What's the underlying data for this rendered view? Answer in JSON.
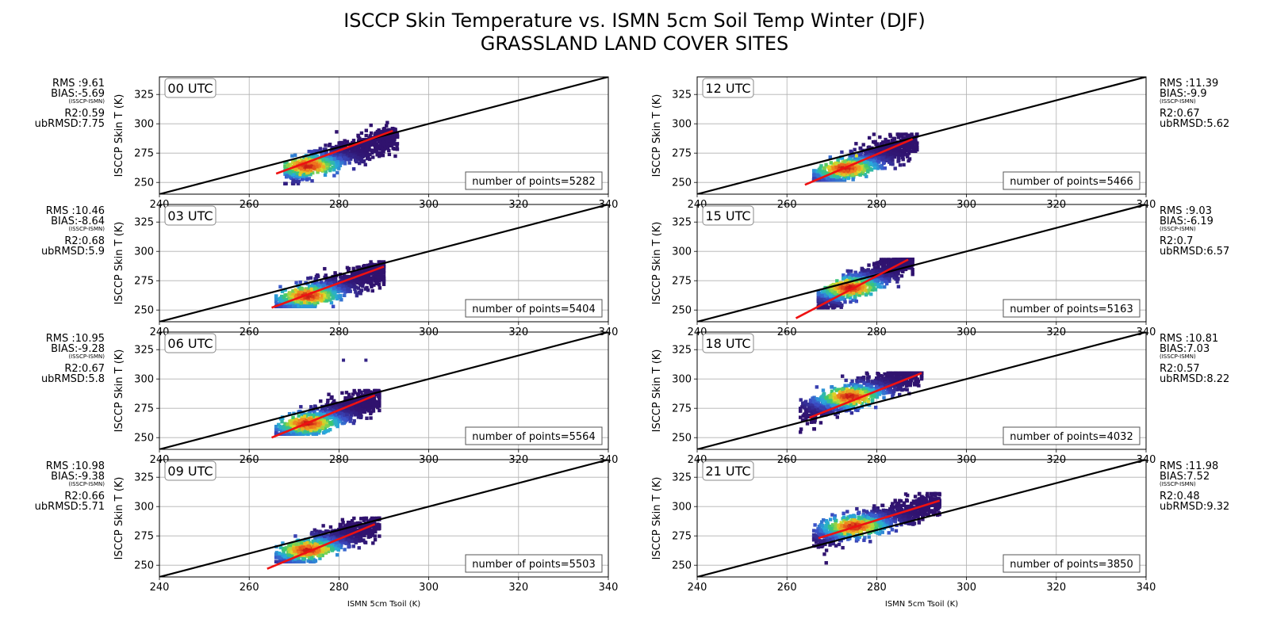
{
  "figure": {
    "title_line1": "ISCCP Skin Temperature vs. ISMN 5cm Soil Temp Winter (DJF)",
    "title_line2": "GRASSLAND LAND COVER SITES"
  },
  "chart_data": [
    {
      "type": "scatter",
      "panel": "00 UTC",
      "column": "left",
      "xlabel": "",
      "ylabel": "ISCCP Skin T (K)",
      "xlim": [
        240,
        340
      ],
      "ylim": [
        240,
        340
      ],
      "xticks": [
        240,
        260,
        280,
        300,
        320,
        340
      ],
      "yticks": [
        250,
        275,
        300,
        325
      ],
      "grid": true,
      "one_to_one_line": [
        [
          240,
          240
        ],
        [
          340,
          340
        ]
      ],
      "fit_line": [
        [
          266,
          257.5
        ],
        [
          292,
          294
        ]
      ],
      "density_center": [
        273,
        264
      ],
      "cloud_extent": {
        "x": [
          268,
          293
        ],
        "y": [
          249,
          301
        ]
      },
      "stats": {
        "rms": "RMS :9.61",
        "bias": "BIAS:-5.69",
        "bias_note": "(ISSCP-ISMN)",
        "r2": "R2:0.59",
        "ubrmsd": "ubRMSD:7.75"
      },
      "points_label": "number of points=5282"
    },
    {
      "type": "scatter",
      "panel": "03 UTC",
      "column": "left",
      "xlabel": "",
      "ylabel": "ISCCP Skin T (K)",
      "xlim": [
        240,
        340
      ],
      "ylim": [
        240,
        340
      ],
      "xticks": [
        240,
        260,
        280,
        300,
        320,
        340
      ],
      "yticks": [
        250,
        275,
        300,
        325
      ],
      "grid": true,
      "one_to_one_line": [
        [
          240,
          240
        ],
        [
          340,
          340
        ]
      ],
      "fit_line": [
        [
          265,
          252
        ],
        [
          290,
          287
        ]
      ],
      "density_center": [
        273,
        262
      ],
      "cloud_extent": {
        "x": [
          266,
          290
        ],
        "y": [
          253,
          291
        ]
      },
      "stats": {
        "rms": "RMS :10.46",
        "bias": "BIAS:-8.64",
        "bias_note": "(ISSCP-ISMN)",
        "r2": "R2:0.68",
        "ubrmsd": "ubRMSD:5.9"
      },
      "points_label": "number of points=5404"
    },
    {
      "type": "scatter",
      "panel": "06 UTC",
      "column": "left",
      "xlabel": "",
      "ylabel": "ISCCP Skin T (K)",
      "xlim": [
        240,
        340
      ],
      "ylim": [
        240,
        340
      ],
      "xticks": [
        240,
        260,
        280,
        300,
        320,
        340
      ],
      "yticks": [
        250,
        275,
        300,
        325
      ],
      "grid": true,
      "one_to_one_line": [
        [
          240,
          240
        ],
        [
          340,
          340
        ]
      ],
      "fit_line": [
        [
          265,
          250
        ],
        [
          288,
          286
        ]
      ],
      "density_center": [
        273,
        262
      ],
      "cloud_extent": {
        "x": [
          266,
          289
        ],
        "y": [
          253,
          290
        ]
      },
      "outliers": [
        [
          281,
          316
        ],
        [
          286,
          316
        ]
      ],
      "stats": {
        "rms": "RMS :10.95",
        "bias": "BIAS:-9.28",
        "bias_note": "(ISSCP-ISMN)",
        "r2": "R2:0.67",
        "ubrmsd": "ubRMSD:5.8"
      },
      "points_label": "number of points=5564"
    },
    {
      "type": "scatter",
      "panel": "09 UTC",
      "column": "left",
      "xlabel": "ISMN 5cm Tsoil (K)",
      "ylabel": "ISCCP Skin T (K)",
      "xlim": [
        240,
        340
      ],
      "ylim": [
        240,
        340
      ],
      "xticks": [
        240,
        260,
        280,
        300,
        320,
        340
      ],
      "yticks": [
        250,
        275,
        300,
        325
      ],
      "grid": true,
      "one_to_one_line": [
        [
          240,
          240
        ],
        [
          340,
          340
        ]
      ],
      "fit_line": [
        [
          264,
          247
        ],
        [
          288,
          285
        ]
      ],
      "density_center": [
        273,
        263
      ],
      "cloud_extent": {
        "x": [
          266,
          289
        ],
        "y": [
          253,
          290
        ]
      },
      "stats": {
        "rms": "RMS :10.98",
        "bias": "BIAS:-9.38",
        "bias_note": "(ISSCP-ISMN)",
        "r2": "R2:0.66",
        "ubrmsd": "ubRMSD:5.71"
      },
      "points_label": "number of points=5503"
    },
    {
      "type": "scatter",
      "panel": "12 UTC",
      "column": "right",
      "xlabel": "",
      "ylabel": "ISCCP Skin T (K)",
      "xlim": [
        240,
        340
      ],
      "ylim": [
        240,
        340
      ],
      "xticks": [
        240,
        260,
        280,
        300,
        320,
        340
      ],
      "yticks": [
        250,
        275,
        300,
        325
      ],
      "grid": true,
      "one_to_one_line": [
        [
          240,
          240
        ],
        [
          340,
          340
        ]
      ],
      "fit_line": [
        [
          264,
          248
        ],
        [
          288,
          287
        ]
      ],
      "density_center": [
        273,
        262
      ],
      "cloud_extent": {
        "x": [
          266,
          289
        ],
        "y": [
          252,
          291
        ]
      },
      "stats": {
        "rms": "RMS :11.39",
        "bias": "BIAS:-9.9",
        "bias_note": "(ISSCP-ISMN)",
        "r2": "R2:0.67",
        "ubrmsd": "ubRMSD:5.62"
      },
      "points_label": "number of points=5466"
    },
    {
      "type": "scatter",
      "panel": "15 UTC",
      "column": "right",
      "xlabel": "",
      "ylabel": "ISCCP Skin T (K)",
      "xlim": [
        240,
        340
      ],
      "ylim": [
        240,
        340
      ],
      "xticks": [
        240,
        260,
        280,
        300,
        320,
        340
      ],
      "yticks": [
        250,
        275,
        300,
        325
      ],
      "grid": true,
      "one_to_one_line": [
        [
          240,
          240
        ],
        [
          340,
          340
        ]
      ],
      "fit_line": [
        [
          262,
          243
        ],
        [
          287,
          293
        ]
      ],
      "density_center": [
        274,
        269
      ],
      "cloud_extent": {
        "x": [
          267,
          288
        ],
        "y": [
          252,
          293
        ]
      },
      "stats": {
        "rms": "RMS :9.03",
        "bias": "BIAS:-6.19",
        "bias_note": "(ISSCP-ISMN)",
        "r2": "R2:0.7",
        "ubrmsd": "ubRMSD:6.57"
      },
      "points_label": "number of points=5163"
    },
    {
      "type": "scatter",
      "panel": "18 UTC",
      "column": "right",
      "xlabel": "",
      "ylabel": "ISCCP Skin T (K)",
      "xlim": [
        240,
        340
      ],
      "ylim": [
        240,
        340
      ],
      "xticks": [
        240,
        260,
        280,
        300,
        320,
        340
      ],
      "yticks": [
        250,
        275,
        300,
        325
      ],
      "grid": true,
      "one_to_one_line": [
        [
          240,
          240
        ],
        [
          340,
          340
        ]
      ],
      "fit_line": [
        [
          265,
          267
        ],
        [
          290,
          305
        ]
      ],
      "density_center": [
        274,
        285
      ],
      "cloud_extent": {
        "x": [
          263,
          290
        ],
        "y": [
          251,
          305
        ]
      },
      "stats": {
        "rms": "RMS :10.81",
        "bias": "BIAS:7.03",
        "bias_note": "(ISSCP-ISMN)",
        "r2": "R2:0.57",
        "ubrmsd": "ubRMSD:8.22"
      },
      "points_label": "number of points=4032"
    },
    {
      "type": "scatter",
      "panel": "21 UTC",
      "column": "right",
      "xlabel": "ISMN 5cm Tsoil (K)",
      "ylabel": "ISCCP Skin T (K)",
      "xlim": [
        240,
        340
      ],
      "ylim": [
        240,
        340
      ],
      "xticks": [
        240,
        260,
        280,
        300,
        320,
        340
      ],
      "yticks": [
        250,
        275,
        300,
        325
      ],
      "grid": true,
      "one_to_one_line": [
        [
          240,
          240
        ],
        [
          340,
          340
        ]
      ],
      "fit_line": [
        [
          267,
          273
        ],
        [
          294,
          305
        ]
      ],
      "density_center": [
        275,
        283
      ],
      "cloud_extent": {
        "x": [
          266,
          294
        ],
        "y": [
          252,
          311
        ]
      },
      "stats": {
        "rms": "RMS :11.98",
        "bias": "BIAS:7.52",
        "bias_note": "(ISSCP-ISMN)",
        "r2": "R2:0.48",
        "ubrmsd": "ubRMSD:9.32"
      },
      "points_label": "number of points=3850"
    }
  ]
}
